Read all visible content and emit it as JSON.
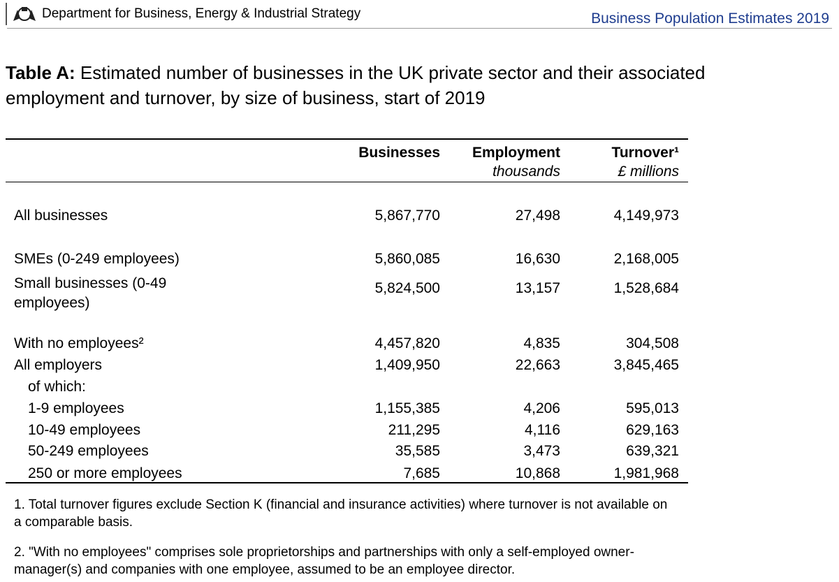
{
  "header": {
    "department": "Department for Business, Energy & Industrial Strategy",
    "publication": "Business Population Estimates 2019"
  },
  "title": {
    "label": "Table A:",
    "text": "Estimated number of businesses in the UK private sector and their associated employment and turnover, by size of business, start of 2019"
  },
  "table": {
    "columns": [
      {
        "name": "Businesses"
      },
      {
        "name": "Employment",
        "unit": "thousands"
      },
      {
        "name": "Turnover¹",
        "unit": "£ millions"
      }
    ],
    "rows": [
      {
        "label": "All businesses",
        "values": [
          "5,867,770",
          "27,498",
          "4,149,973"
        ]
      },
      {
        "label": "SMEs (0-249 employees)",
        "values": [
          "5,860,085",
          "16,630",
          "2,168,005"
        ]
      },
      {
        "label": "Small businesses (0-49 employees)",
        "values": [
          "5,824,500",
          "13,157",
          "1,528,684"
        ]
      },
      {
        "label": "With no employees²",
        "values": [
          "4,457,820",
          "4,835",
          "304,508"
        ]
      },
      {
        "label": "All employers",
        "values": [
          "1,409,950",
          "22,663",
          "3,845,465"
        ]
      },
      {
        "label": "of which:"
      },
      {
        "label": "1-9 employees",
        "values": [
          "1,155,385",
          "4,206",
          "595,013"
        ]
      },
      {
        "label": "10-49 employees",
        "values": [
          "211,295",
          "4,116",
          "629,163"
        ]
      },
      {
        "label": "50-249 employees",
        "values": [
          "35,585",
          "3,473",
          "639,321"
        ]
      },
      {
        "label": "250 or more employees",
        "values": [
          "7,685",
          "10,868",
          "1,981,968"
        ]
      }
    ]
  },
  "footnotes": [
    "1. Total turnover figures exclude Section K (financial and insurance activities) where turnover is not available on a comparable basis.",
    "2. \"With no employees\" comprises sole proprietorships and partnerships with only a self-employed owner-manager(s) and companies with one employee, assumed to be an employee director."
  ]
}
